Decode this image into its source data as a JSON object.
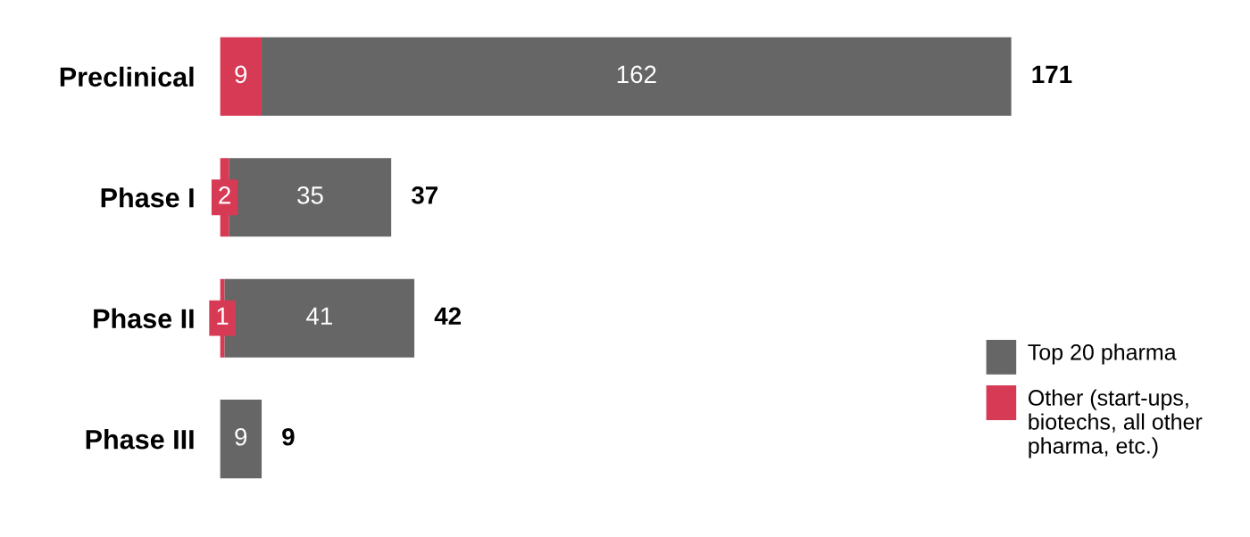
{
  "chart_data": {
    "type": "bar",
    "orientation": "horizontal",
    "stacked": true,
    "categories": [
      "Preclinical",
      "Phase I",
      "Phase II",
      "Phase III"
    ],
    "series": [
      {
        "name": "Other (start-ups, biotechs, all other pharma, etc.)",
        "color": "#d63a55",
        "values": [
          9,
          2,
          1,
          null
        ]
      },
      {
        "name": "Top 20 pharma",
        "color": "#666666",
        "values": [
          162,
          35,
          41,
          9
        ]
      }
    ],
    "data_labels": true,
    "totals": [
      "171",
      "37",
      "42",
      "9"
    ],
    "legend": "bottom right",
    "grid": false
  }
}
